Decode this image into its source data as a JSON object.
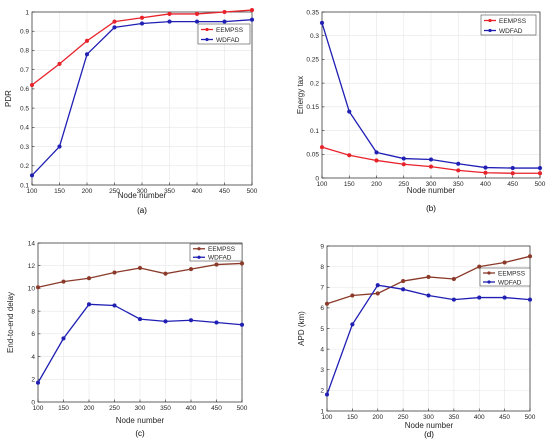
{
  "chart_data": [
    {
      "type": "line",
      "panel_label": "(a)",
      "xlabel": "Node number",
      "ylabel": "PDR",
      "x": [
        100,
        150,
        200,
        250,
        300,
        350,
        400,
        450,
        500
      ],
      "xlim": [
        100,
        500
      ],
      "ylim": [
        0.1,
        1
      ],
      "yticks": [
        "0.1",
        "0.2",
        "0.3",
        "0.4",
        "0.5",
        "0.6",
        "0.7",
        "0.8",
        "0.9",
        "1"
      ],
      "grid": true,
      "legend": "top-right",
      "series": [
        {
          "name": "EEMPSS",
          "color": "#e8222a",
          "values": [
            0.62,
            0.73,
            0.85,
            0.95,
            0.97,
            0.99,
            0.99,
            1.0,
            1.01
          ]
        },
        {
          "name": "WDFAD",
          "color": "#1f1fb4",
          "values": [
            0.15,
            0.3,
            0.78,
            0.92,
            0.94,
            0.95,
            0.95,
            0.95,
            0.96
          ]
        }
      ]
    },
    {
      "type": "line",
      "panel_label": "(b)",
      "xlabel": "Node number",
      "ylabel": "Energy tax",
      "x": [
        100,
        150,
        200,
        250,
        300,
        350,
        400,
        450,
        500
      ],
      "xlim": [
        100,
        500
      ],
      "ylim": [
        0,
        0.35
      ],
      "yticks": [
        "0",
        "0.05",
        "0.1",
        "0.15",
        "0.2",
        "0.25",
        "0.3",
        "0.35"
      ],
      "grid": true,
      "legend": "top-right",
      "series": [
        {
          "name": "EEMPSS",
          "color": "#e8222a",
          "values": [
            0.065,
            0.048,
            0.037,
            0.029,
            0.024,
            0.016,
            0.011,
            0.01,
            0.01
          ]
        },
        {
          "name": "WDFAD",
          "color": "#1f1fb4",
          "values": [
            0.327,
            0.14,
            0.054,
            0.041,
            0.039,
            0.03,
            0.022,
            0.021,
            0.021
          ]
        }
      ]
    },
    {
      "type": "line",
      "panel_label": "(c)",
      "xlabel": "Node number",
      "ylabel": "End-to-end delay",
      "x": [
        100,
        150,
        200,
        250,
        300,
        350,
        400,
        450,
        500
      ],
      "xlim": [
        100,
        500
      ],
      "ylim": [
        0,
        14
      ],
      "yticks": [
        "0",
        "2",
        "4",
        "6",
        "8",
        "10",
        "12",
        "14"
      ],
      "grid": true,
      "legend": "top-right",
      "series": [
        {
          "name": "EEMPSS",
          "color": "#8b3a2a",
          "values": [
            10.1,
            10.6,
            10.9,
            11.4,
            11.8,
            11.3,
            11.7,
            12.1,
            12.2
          ]
        },
        {
          "name": "WDFAD",
          "color": "#1f1fb4",
          "values": [
            1.7,
            5.6,
            8.6,
            8.5,
            7.3,
            7.1,
            7.2,
            7.0,
            6.8
          ]
        }
      ]
    },
    {
      "type": "line",
      "panel_label": "(d)",
      "xlabel": "Node number",
      "ylabel": "APD (km)",
      "x": [
        100,
        150,
        200,
        250,
        300,
        350,
        400,
        450,
        500
      ],
      "xlim": [
        100,
        500
      ],
      "ylim": [
        1,
        9
      ],
      "yticks": [
        "1",
        "2",
        "3",
        "4",
        "5",
        "6",
        "7",
        "8",
        "9"
      ],
      "grid": true,
      "legend": "top-right",
      "series": [
        {
          "name": "EEMPSS",
          "color": "#8b3a2a",
          "values": [
            6.2,
            6.6,
            6.7,
            7.3,
            7.5,
            7.4,
            8.0,
            8.2,
            8.5
          ]
        },
        {
          "name": "WDFAD",
          "color": "#1f1fb4",
          "values": [
            1.8,
            5.2,
            7.1,
            6.9,
            6.6,
            6.4,
            6.5,
            6.5,
            6.4
          ]
        }
      ]
    }
  ]
}
